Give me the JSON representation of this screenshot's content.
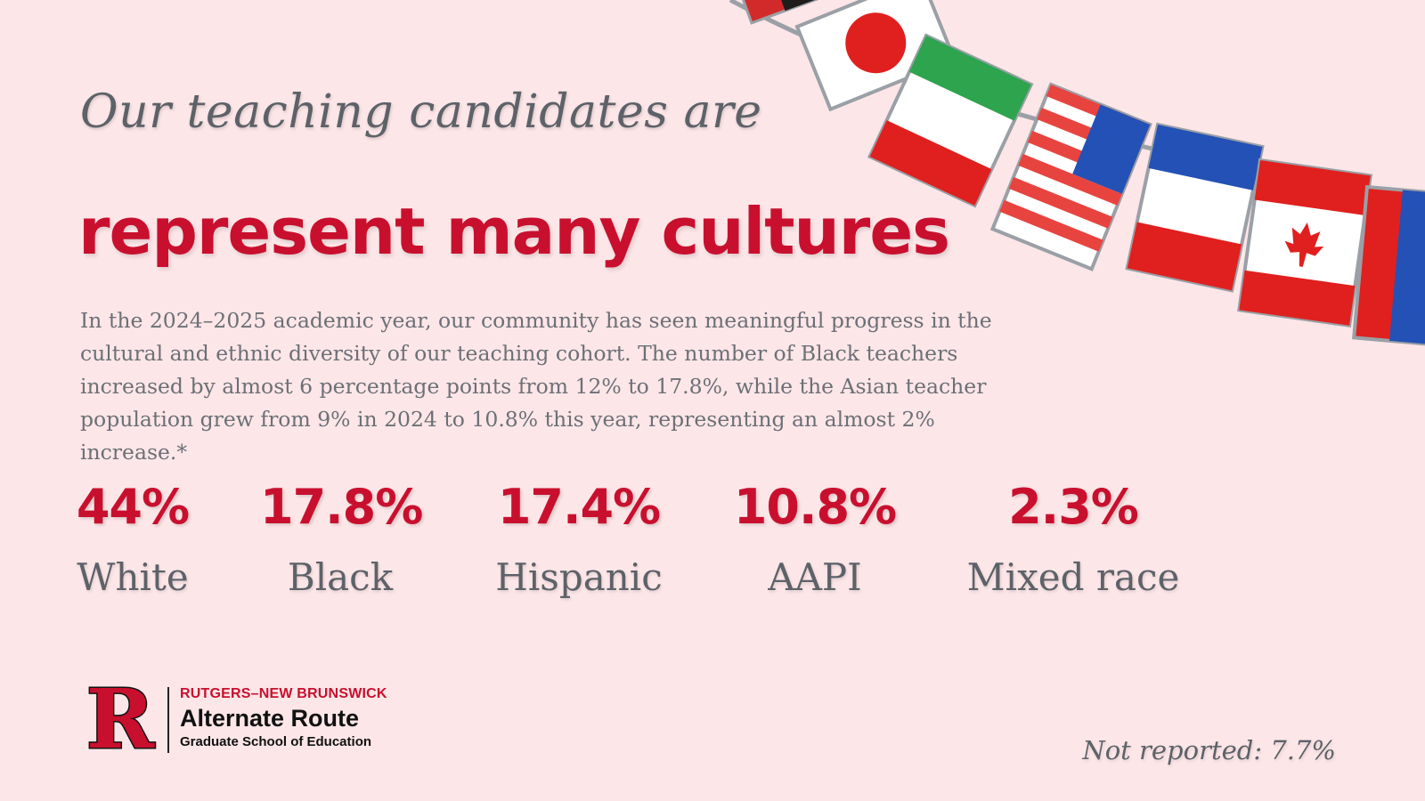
{
  "subtitle": "Our teaching candidates are",
  "headline": "represent many cultures",
  "body": "In the 2024–2025 academic year, our community has seen meaningful progress in the cultural and ethnic diversity of our teaching cohort. The number of Black teachers increased by almost 6 percentage points from 12% to 17.8%, while the Asian teacher population grew from 9% in 2024 to 10.8% this year, representing an almost 2% increase.*",
  "stats": [
    {
      "value": "44%",
      "label": "White"
    },
    {
      "value": "17.8%",
      "label": "Black"
    },
    {
      "value": "17.4%",
      "label": "Hispanic"
    },
    {
      "value": "10.8%",
      "label": "AAPI"
    },
    {
      "value": "2.3%",
      "label": "Mixed race"
    }
  ],
  "logo": {
    "letter": "R",
    "line1": "RUTGERS–NEW BRUNSWICK",
    "line2": "Alternate Route",
    "line3": "Graduate School of Education"
  },
  "footnote": "Not reported: 7.7%",
  "colors": {
    "accent": "#c8102e",
    "text": "#5d6268",
    "background": "#fde6e8"
  },
  "decoration": "flag-bunting"
}
